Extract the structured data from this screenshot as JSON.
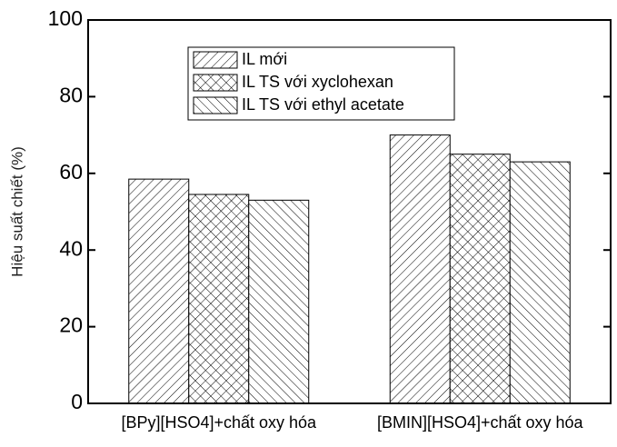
{
  "chart_data": {
    "type": "bar",
    "y_label": "Hiệu suất chiết (%)",
    "categories": [
      "[BPy][HSO4]+chất oxy hóa",
      "[BMIN][HSO4]+chất oxy hóa"
    ],
    "series": [
      {
        "name": "IL  mới",
        "color": "#000000",
        "values": [
          58.5,
          70
        ]
      },
      {
        "name": "IL TS với xyclohexan",
        "color": "#000000",
        "values": [
          54.5,
          65
        ]
      },
      {
        "name": "IL TS với ethyl acetate",
        "color": "#000000",
        "values": [
          53,
          63
        ]
      }
    ],
    "ylim": [
      0,
      100
    ],
    "yticks": [
      0,
      20,
      40,
      60,
      80,
      100
    ]
  }
}
